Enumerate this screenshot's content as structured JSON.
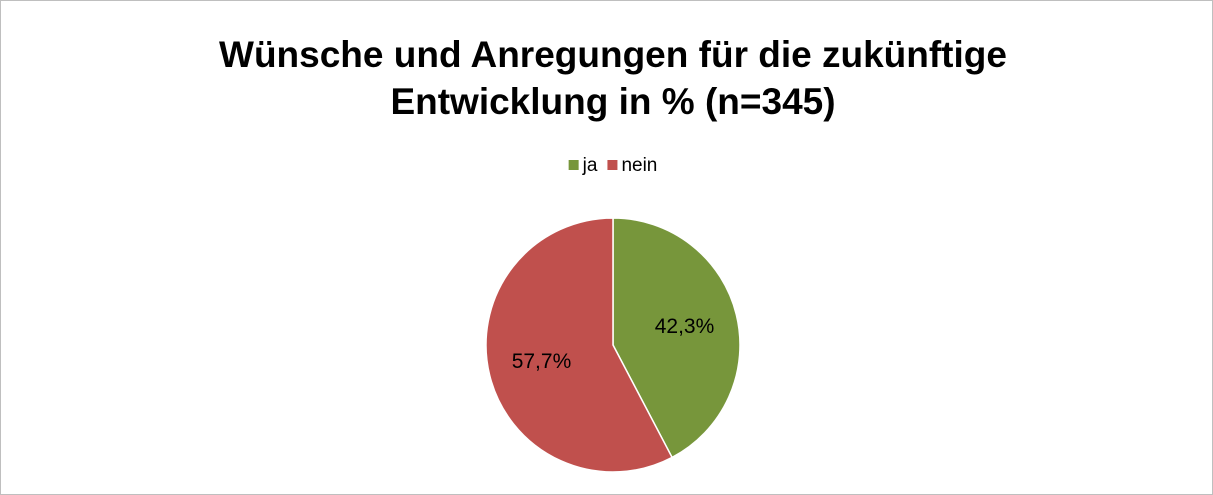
{
  "chart_data": {
    "type": "pie",
    "title": [
      "Wünsche und Anregungen für die zukünftige",
      "Entwicklung in % (n=345)"
    ],
    "categories": [
      "ja",
      "nein"
    ],
    "values": [
      42.3,
      57.7
    ],
    "value_labels": [
      "42,3%",
      "57,7%"
    ],
    "colors": [
      "#77963b",
      "#c0504d"
    ],
    "legend": "top"
  }
}
